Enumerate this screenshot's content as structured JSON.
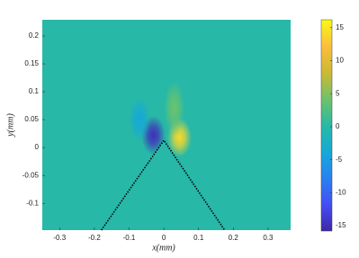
{
  "chart_data": {
    "type": "heatmap",
    "xlabel": "x(mm)",
    "ylabel": "y(mm)",
    "xlim": [
      -0.35,
      0.365
    ],
    "ylim": [
      -0.148,
      0.229
    ],
    "xticks": [
      -0.3,
      -0.2,
      -0.1,
      0,
      0.1,
      0.2,
      0.3
    ],
    "yticks": [
      -0.1,
      -0.05,
      0,
      0.05,
      0.1,
      0.15,
      0.2
    ],
    "background_value": 0,
    "blobs": [
      {
        "x": -0.03,
        "y": 0.022,
        "rx": 0.035,
        "ry": 0.035,
        "value": -15
      },
      {
        "x": 0.045,
        "y": 0.018,
        "rx": 0.035,
        "ry": 0.035,
        "value": 14
      },
      {
        "x": 0.03,
        "y": 0.07,
        "rx": 0.03,
        "ry": 0.05,
        "value": 4
      },
      {
        "x": -0.07,
        "y": 0.05,
        "rx": 0.03,
        "ry": 0.04,
        "value": -4
      }
    ],
    "wedge": {
      "x": [
        -0.18,
        0,
        0.175
      ],
      "y": [
        -0.148,
        0.013,
        -0.148
      ],
      "color": "#000000"
    },
    "colorbar": {
      "clim": [
        -15.8,
        16.2
      ],
      "ticks": [
        -15,
        -10,
        -5,
        0,
        5,
        10,
        15
      ]
    }
  }
}
